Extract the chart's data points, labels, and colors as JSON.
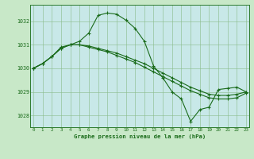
{
  "title": "Graphe pression niveau de la mer (hPa)",
  "background_color": "#c8e8c8",
  "plot_bg_color": "#c8e8e8",
  "grid_color": "#88bb88",
  "line_color": "#1a6b1a",
  "x_ticks": [
    0,
    1,
    2,
    3,
    4,
    5,
    6,
    7,
    8,
    9,
    10,
    11,
    12,
    13,
    14,
    15,
    16,
    17,
    18,
    19,
    20,
    21,
    22,
    23
  ],
  "y_ticks": [
    1028,
    1029,
    1030,
    1031,
    1032
  ],
  "ylim": [
    1027.5,
    1032.7
  ],
  "xlim": [
    -0.3,
    23.3
  ],
  "series_a": [
    1030.0,
    1030.2,
    1030.5,
    1030.9,
    1031.0,
    1031.15,
    1031.5,
    1032.25,
    1032.35,
    1032.3,
    1032.05,
    1031.7,
    1031.15,
    1030.1,
    1029.6,
    1029.0,
    1028.7,
    1027.75,
    1028.25,
    1028.35,
    1029.1,
    1029.15,
    1029.2,
    1029.0
  ],
  "series_b": [
    1030.0,
    1030.2,
    1030.5,
    1030.85,
    1031.0,
    1031.0,
    1030.95,
    1030.85,
    1030.75,
    1030.65,
    1030.5,
    1030.35,
    1030.2,
    1030.0,
    1029.8,
    1029.6,
    1029.4,
    1029.2,
    1029.05,
    1028.9,
    1028.85,
    1028.85,
    1028.9,
    1029.0
  ],
  "series_c": [
    1030.0,
    1030.2,
    1030.5,
    1030.85,
    1031.0,
    1031.0,
    1030.9,
    1030.8,
    1030.7,
    1030.55,
    1030.4,
    1030.25,
    1030.05,
    1029.85,
    1029.65,
    1029.45,
    1029.25,
    1029.05,
    1028.9,
    1028.75,
    1028.7,
    1028.7,
    1028.75,
    1028.95
  ]
}
